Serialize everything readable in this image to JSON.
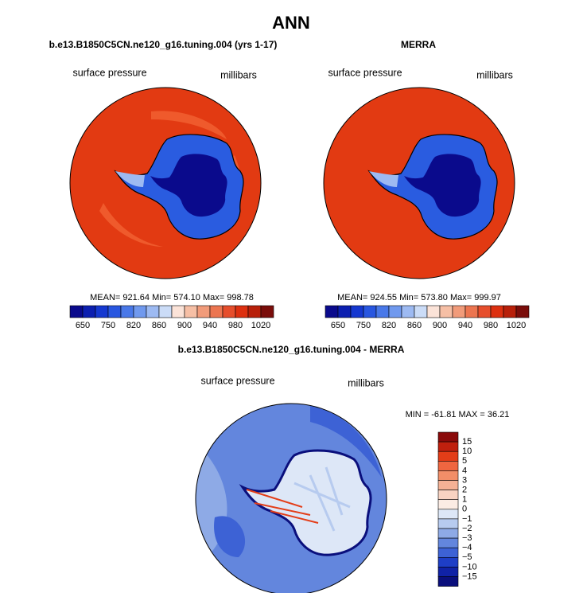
{
  "title": "ANN",
  "panels": [
    {
      "subtitle": "b.e13.B1850C5CN.ne120_g16.tuning.004 (yrs 1-17)",
      "left_label": "surface pressure",
      "right_label": "millibars",
      "stats": "MEAN= 921.64   Min= 574.10   Max= 998.78"
    },
    {
      "subtitle": "MERRA",
      "left_label": "surface pressure",
      "right_label": "millibars",
      "stats": "MEAN= 924.55   Min= 573.80   Max= 999.97"
    },
    {
      "subtitle": "b.e13.B1850C5CN.ne120_g16.tuning.004 - MERRA",
      "left_label": "surface pressure",
      "right_label": "millibars",
      "stats": "MIN = -61.81 MAX =  36.21"
    }
  ],
  "abs_colorbar": {
    "labels": [
      "650",
      "750",
      "820",
      "860",
      "900",
      "940",
      "980",
      "1020"
    ],
    "colors": [
      "#0a0a8c",
      "#0c1fb0",
      "#1538d0",
      "#2856e0",
      "#4978e8",
      "#7099ee",
      "#9dbaf2",
      "#cbdcf7",
      "#fbe3d8",
      "#f6bfa5",
      "#f19b7a",
      "#ec7550",
      "#e64e2c",
      "#dd3010",
      "#b8200a",
      "#7a0d0a"
    ]
  },
  "diff_colorbar": {
    "labels": [
      "15",
      "10",
      "5",
      "4",
      "3",
      "2",
      "1",
      "0",
      "−1",
      "−2",
      "−3",
      "−4",
      "−5",
      "−10",
      "−15"
    ],
    "colors": [
      "#8a0a0a",
      "#c0200e",
      "#e33d18",
      "#ef6640",
      "#f28e68",
      "#f5b195",
      "#f8d3c2",
      "#fbece4",
      "#dde7f7",
      "#b7cbef",
      "#8eaae6",
      "#6386dd",
      "#3d62d5",
      "#1e3ec6",
      "#1022a6",
      "#0a0f7c"
    ]
  }
}
